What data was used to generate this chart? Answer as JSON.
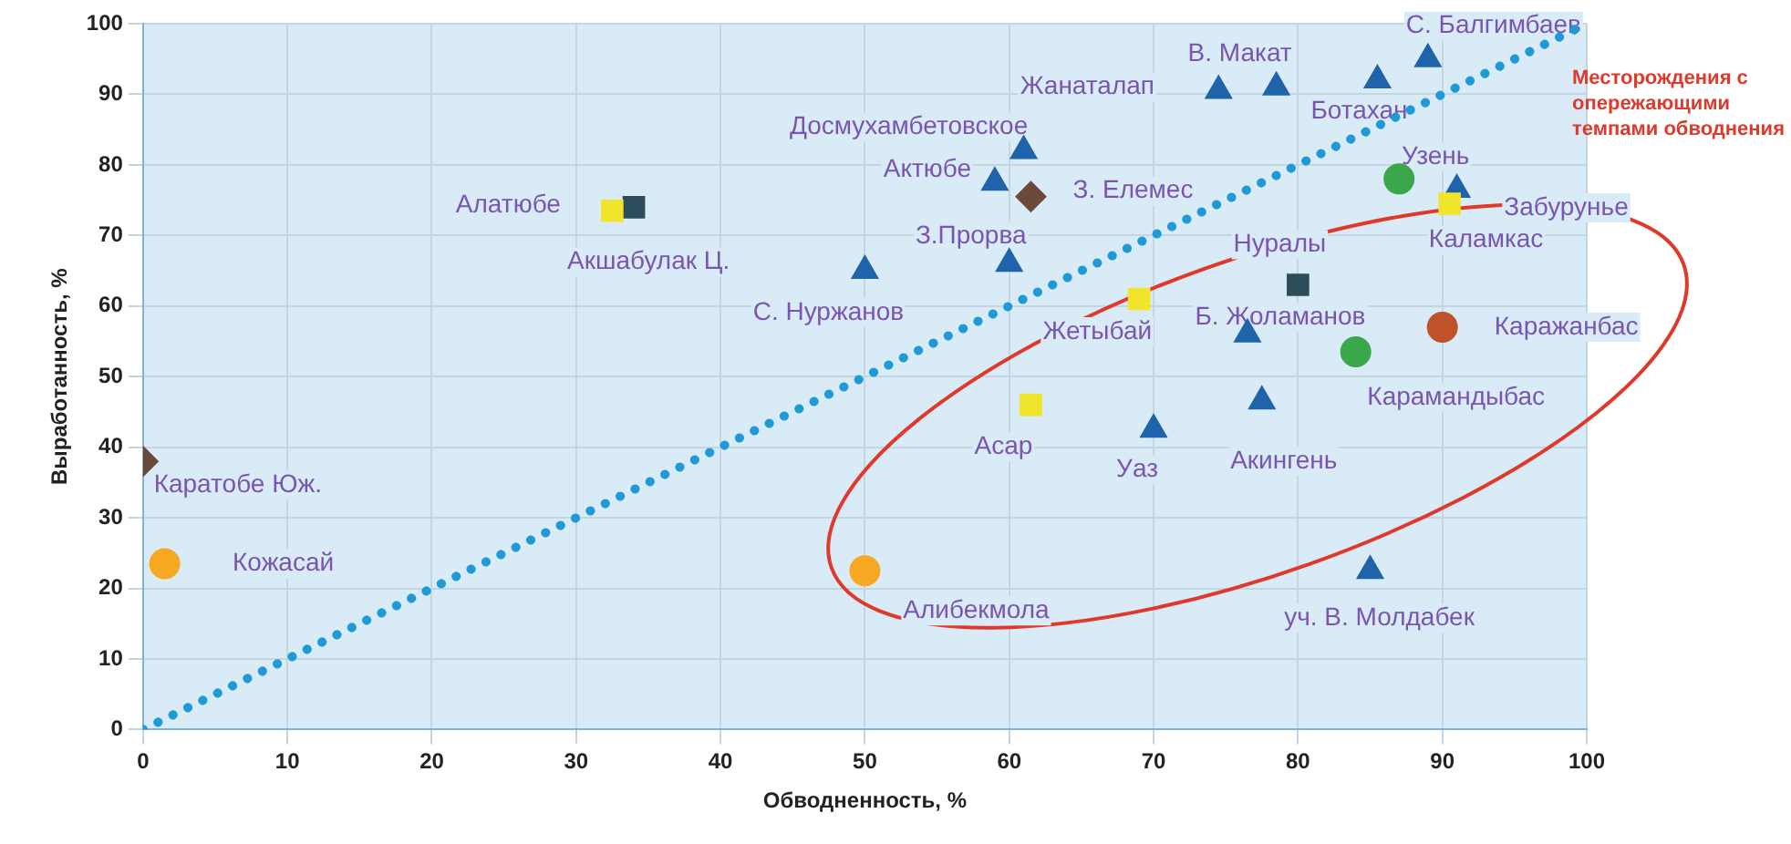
{
  "chart_data": {
    "type": "scatter",
    "xlabel": "Обводненность, %",
    "ylabel": "Выработанность, %",
    "xlim": [
      0,
      100
    ],
    "ylim": [
      0,
      100
    ],
    "xticks": [
      0,
      10,
      20,
      30,
      40,
      50,
      60,
      70,
      80,
      90,
      100
    ],
    "yticks": [
      0,
      10,
      20,
      30,
      40,
      50,
      60,
      70,
      80,
      90,
      100
    ],
    "grid": true,
    "legend": false,
    "series": [
      {
        "color": "#6b4a3a",
        "marker": "diamond",
        "x": [
          0,
          61.5
        ],
        "values": [
          38,
          75.5
        ]
      },
      {
        "color": "#f0e52a",
        "marker": "square",
        "x": [
          32.5,
          69,
          61.5,
          90.5
        ],
        "values": [
          73.5,
          61,
          46,
          74.5
        ]
      },
      {
        "color": "#f7a823",
        "marker": "circle",
        "x": [
          1.5,
          50
        ],
        "values": [
          23.5,
          22.5
        ]
      },
      {
        "color": "#1f63aa",
        "marker": "triangle",
        "x": [
          50,
          60,
          59,
          61,
          74.5,
          78.5,
          85.5,
          89,
          91,
          76.5,
          77.5,
          70,
          85
        ],
        "values": [
          65,
          66,
          77.5,
          82,
          90.5,
          91,
          92,
          95,
          76.5,
          56,
          46.5,
          42.5,
          22.5
        ]
      },
      {
        "color": "#3aa84a",
        "marker": "circle",
        "x": [
          87,
          84
        ],
        "values": [
          78,
          53.5
        ]
      },
      {
        "color": "#2d4c5c",
        "marker": "square",
        "x": [
          34,
          80
        ],
        "values": [
          74,
          63
        ]
      },
      {
        "color": "#c0522a",
        "marker": "circle",
        "x": [
          90
        ],
        "values": [
          57
        ]
      },
      {
        "type": "line",
        "color": "#1e9ad6",
        "line_style": "dotted",
        "marker": "none",
        "x": [
          0,
          100
        ],
        "values": [
          0,
          100
        ]
      }
    ],
    "annotations": [
      {
        "text": "Каратобе Юж.",
        "x": 0,
        "y": 38
      },
      {
        "text": "З. Елемес",
        "x": 61.5,
        "y": 75.5
      },
      {
        "text": "Алатюбе",
        "x": 32.5,
        "y": 73.5
      },
      {
        "text": "Жетыбай",
        "x": 69,
        "y": 61
      },
      {
        "text": "Асар",
        "x": 61.5,
        "y": 46
      },
      {
        "text": "Каламкас",
        "x": 90.5,
        "y": 74.5
      },
      {
        "text": "Кожасай",
        "x": 1.5,
        "y": 23.5
      },
      {
        "text": "Алибекмола",
        "x": 50,
        "y": 22.5
      },
      {
        "text": "С. Нуржанов",
        "x": 50,
        "y": 65
      },
      {
        "text": "З.Прорва",
        "x": 60,
        "y": 66
      },
      {
        "text": "Актюбе",
        "x": 59,
        "y": 77.5
      },
      {
        "text": "Досмухамбетовское",
        "x": 61,
        "y": 82
      },
      {
        "text": "Жанаталап",
        "x": 74.5,
        "y": 90.5
      },
      {
        "text": "В. Макат",
        "x": 78.5,
        "y": 91
      },
      {
        "text": "Ботахан",
        "x": 85.5,
        "y": 92
      },
      {
        "text": "С. Балгимбаев",
        "x": 89,
        "y": 95
      },
      {
        "text": "Забурунье",
        "x": 91,
        "y": 76.5
      },
      {
        "text": "Б. Жоламанов",
        "x": 76.5,
        "y": 56
      },
      {
        "text": "Акингень",
        "x": 77.5,
        "y": 46.5
      },
      {
        "text": "Уаз",
        "x": 70,
        "y": 42.5
      },
      {
        "text": "уч. В. Молдабек",
        "x": 85,
        "y": 22.5
      },
      {
        "text": "Узень",
        "x": 87,
        "y": 78
      },
      {
        "text": "Карамандыбас",
        "x": 84,
        "y": 53.5
      },
      {
        "text": "Акшабулак Ц.",
        "x": 34,
        "y": 74
      },
      {
        "text": "Нуралы",
        "x": 80,
        "y": 63
      },
      {
        "text": "Каражанбас",
        "x": 90,
        "y": 57
      },
      "Месторождения с опережающими темпами обводнения"
    ]
  }
}
